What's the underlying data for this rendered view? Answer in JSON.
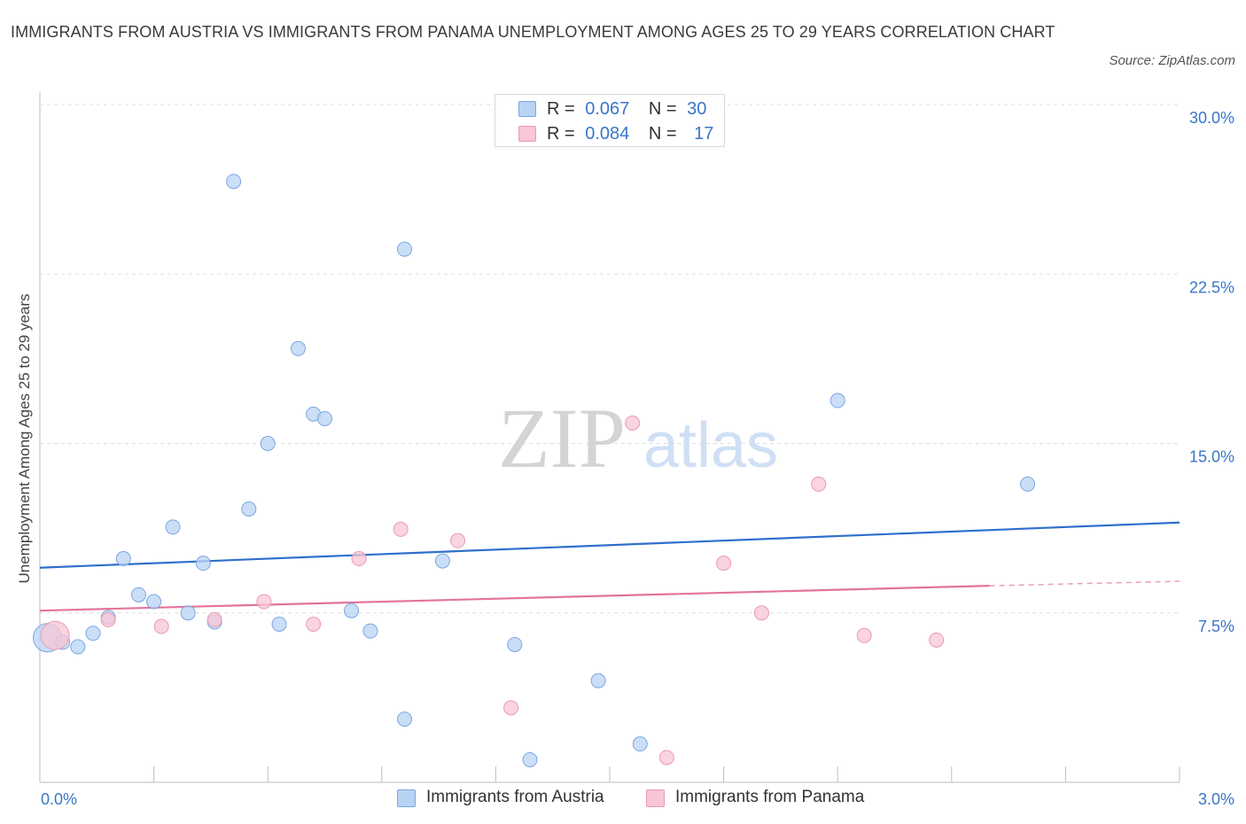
{
  "title": "IMMIGRANTS FROM AUSTRIA VS IMMIGRANTS FROM PANAMA UNEMPLOYMENT AMONG AGES 25 TO 29 YEARS CORRELATION CHART",
  "source": "Source: ZipAtlas.com",
  "watermark": {
    "zip": "ZIP",
    "atlas": "atlas"
  },
  "legend": {
    "austria": {
      "r_label": "R =",
      "r_value": "0.067",
      "n_label": "N =",
      "n_value": "30"
    },
    "panama": {
      "r_label": "R =",
      "r_value": "0.084",
      "n_label": "N =",
      "n_value": "17"
    }
  },
  "colors": {
    "austria_fill": "#b9d3f5",
    "austria_stroke": "#7aa7e0",
    "austria_line": "#2f6fcc",
    "panama_fill": "#f8c6d5",
    "panama_stroke": "#e89ab3",
    "panama_line": "#e4739a",
    "tick_label": "#3a76c8",
    "grid": "#dddddd"
  },
  "chart_data": {
    "type": "scatter",
    "title": "IMMIGRANTS FROM AUSTRIA VS IMMIGRANTS FROM PANAMA UNEMPLOYMENT AMONG AGES 25 TO 29 YEARS CORRELATION CHART",
    "xlabel": "",
    "ylabel": "Unemployment Among Ages 25 to 29 years",
    "xlim": [
      0,
      3.0
    ],
    "ylim": [
      0,
      30.0
    ],
    "x_tick_labels": [
      "0.0%",
      "3.0%"
    ],
    "y_ticks": [
      7.5,
      15.0,
      22.5,
      30.0
    ],
    "y_tick_labels": [
      "7.5%",
      "15.0%",
      "22.5%",
      "30.0%"
    ],
    "grid": true,
    "legend_position": "top-center",
    "series": [
      {
        "name": "Immigrants from Austria",
        "color": "#b9d3f5",
        "points": [
          {
            "x": 0.02,
            "y": 6.4
          },
          {
            "x": 0.06,
            "y": 6.2
          },
          {
            "x": 0.1,
            "y": 6.0
          },
          {
            "x": 0.14,
            "y": 6.6
          },
          {
            "x": 0.18,
            "y": 7.3
          },
          {
            "x": 0.22,
            "y": 9.9
          },
          {
            "x": 0.26,
            "y": 8.3
          },
          {
            "x": 0.3,
            "y": 8.0
          },
          {
            "x": 0.35,
            "y": 11.3
          },
          {
            "x": 0.39,
            "y": 7.5
          },
          {
            "x": 0.43,
            "y": 9.7
          },
          {
            "x": 0.46,
            "y": 7.1
          },
          {
            "x": 0.51,
            "y": 26.6
          },
          {
            "x": 0.55,
            "y": 12.1
          },
          {
            "x": 0.6,
            "y": 15.0
          },
          {
            "x": 0.63,
            "y": 7.0
          },
          {
            "x": 0.68,
            "y": 19.2
          },
          {
            "x": 0.72,
            "y": 16.3
          },
          {
            "x": 0.75,
            "y": 16.1
          },
          {
            "x": 0.82,
            "y": 7.6
          },
          {
            "x": 0.87,
            "y": 6.7
          },
          {
            "x": 0.96,
            "y": 2.8
          },
          {
            "x": 0.96,
            "y": 23.6
          },
          {
            "x": 1.06,
            "y": 9.8
          },
          {
            "x": 1.25,
            "y": 6.1
          },
          {
            "x": 1.29,
            "y": 1.0
          },
          {
            "x": 1.47,
            "y": 4.5
          },
          {
            "x": 1.58,
            "y": 1.7
          },
          {
            "x": 2.1,
            "y": 16.9
          },
          {
            "x": 2.6,
            "y": 13.2
          }
        ]
      },
      {
        "name": "Immigrants from Panama",
        "color": "#f8c6d5",
        "points": [
          {
            "x": 0.04,
            "y": 6.5
          },
          {
            "x": 0.18,
            "y": 7.2
          },
          {
            "x": 0.32,
            "y": 6.9
          },
          {
            "x": 0.46,
            "y": 7.2
          },
          {
            "x": 0.59,
            "y": 8.0
          },
          {
            "x": 0.72,
            "y": 7.0
          },
          {
            "x": 0.84,
            "y": 9.9
          },
          {
            "x": 0.95,
            "y": 11.2
          },
          {
            "x": 1.1,
            "y": 10.7
          },
          {
            "x": 1.24,
            "y": 3.3
          },
          {
            "x": 1.56,
            "y": 15.9
          },
          {
            "x": 1.65,
            "y": 1.1
          },
          {
            "x": 1.8,
            "y": 9.7
          },
          {
            "x": 1.9,
            "y": 7.5
          },
          {
            "x": 2.05,
            "y": 13.2
          },
          {
            "x": 2.17,
            "y": 6.5
          },
          {
            "x": 2.36,
            "y": 6.3
          }
        ]
      }
    ],
    "trendlines": [
      {
        "series": "Immigrants from Austria",
        "x": [
          0,
          3.0
        ],
        "y": [
          9.5,
          11.5
        ]
      },
      {
        "series": "Immigrants from Panama",
        "x": [
          0,
          2.5
        ],
        "y": [
          7.6,
          8.7
        ],
        "dashed_extension_to": [
          3.0,
          8.9
        ]
      }
    ]
  }
}
